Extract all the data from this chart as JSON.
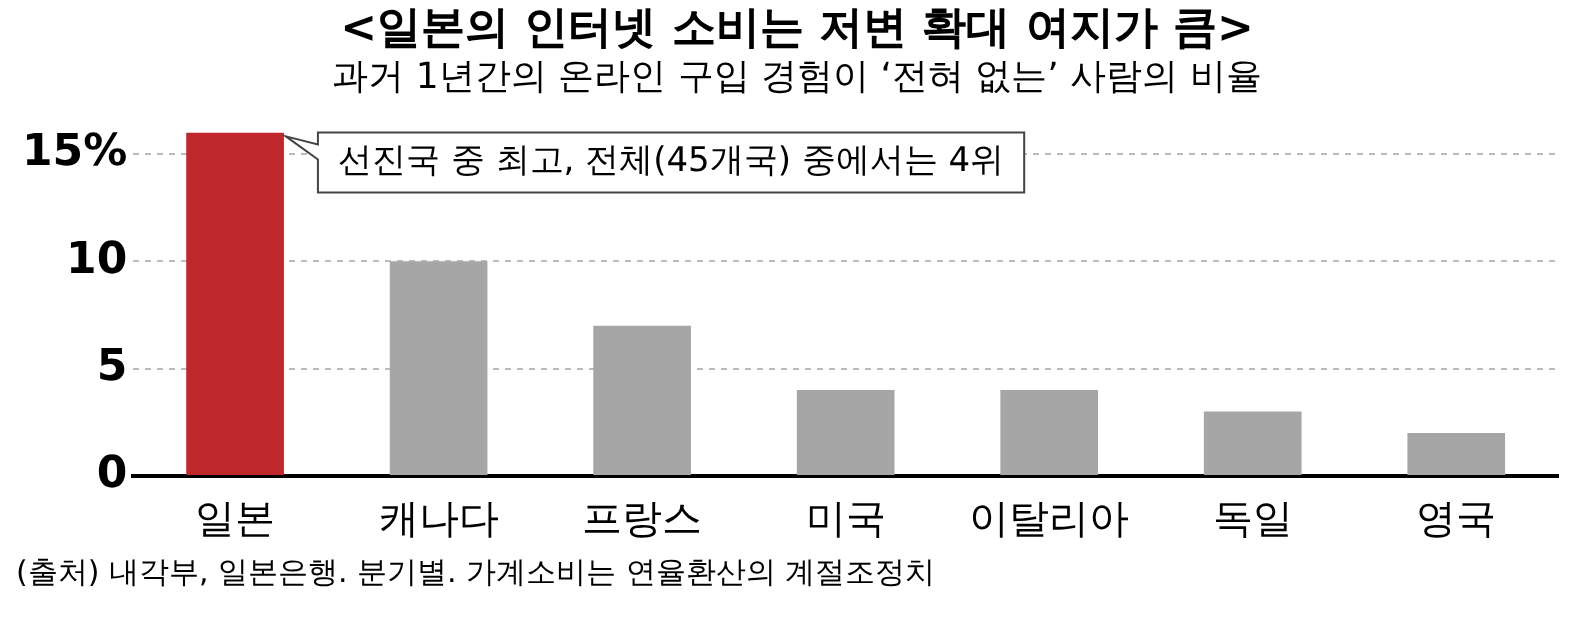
{
  "chart_data": {
    "type": "bar",
    "title": "<일본의 인터넷 소비는 저변 확대 여지가 큼>",
    "subtitle": "과거 1년간의 온라인 구입 경험이 ‘전혀 없는’ 사람의 비율",
    "categories": [
      "일본",
      "캐나다",
      "프랑스",
      "미국",
      "이탈리아",
      "독일",
      "영국"
    ],
    "values": [
      16,
      10,
      7,
      4,
      4,
      3,
      2
    ],
    "colors": [
      "#c0272d",
      "#a6a6a6",
      "#a6a6a6",
      "#a6a6a6",
      "#a6a6a6",
      "#a6a6a6",
      "#a6a6a6"
    ],
    "ylim": [
      0,
      16
    ],
    "yticks": [
      0,
      5,
      10,
      {
        "value": 15,
        "label": "15%"
      }
    ],
    "grid": "y",
    "legend": false,
    "annotations": [
      "선진국 중 최고, 전체(45개국) 중에서는 4위",
      "(출처) 내각부, 일본은행. 분기별. 가계소비는 연율환산의 계절조정치"
    ]
  }
}
